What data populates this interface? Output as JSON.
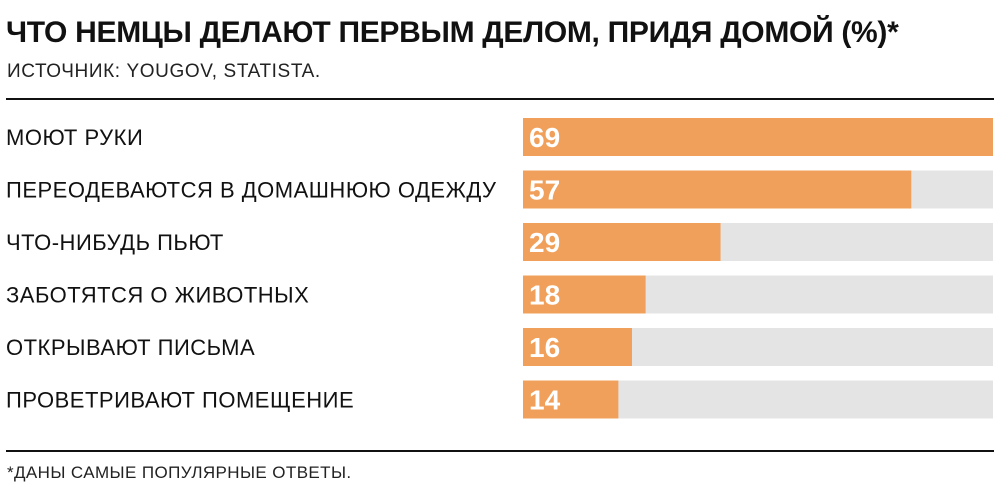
{
  "header": {
    "title": "ЧТО НЕМЦЫ ДЕЛАЮТ ПЕРВЫМ ДЕЛОМ, ПРИДЯ ДОМОЙ (%)*",
    "source": "ИСТОЧНИК: YOUGOV, STATISTA."
  },
  "footnote": "*ДАНЫ САМЫЕ ПОПУЛЯРНЫЕ ОТВЕТЫ.",
  "colors": {
    "bar": "#f0a05a",
    "track": "#e4e4e4",
    "value_text": "#ffffff",
    "label_text": "#111111"
  },
  "chart_data": {
    "type": "bar",
    "orientation": "horizontal",
    "categories": [
      "МОЮТ РУКИ",
      "ПЕРЕОДЕВАЮТСЯ В ДОМАШНЮЮ ОДЕЖДУ",
      "ЧТО-НИБУДЬ ПЬЮТ",
      "ЗАБОТЯТСЯ О ЖИВОТНЫХ",
      "ОТКРЫВАЮТ ПИСЬМА",
      "ПРОВЕТРИВАЮТ ПОМЕЩЕНИЕ"
    ],
    "values": [
      69,
      57,
      29,
      18,
      16,
      14
    ],
    "xlim": [
      0,
      69
    ],
    "title": "ЧТО НЕМЦЫ ДЕЛАЮТ ПЕРВЫМ ДЕЛОМ, ПРИДЯ ДОМОЙ (%)*",
    "xlabel": "",
    "ylabel": "",
    "grid": false,
    "data_labels": true
  }
}
